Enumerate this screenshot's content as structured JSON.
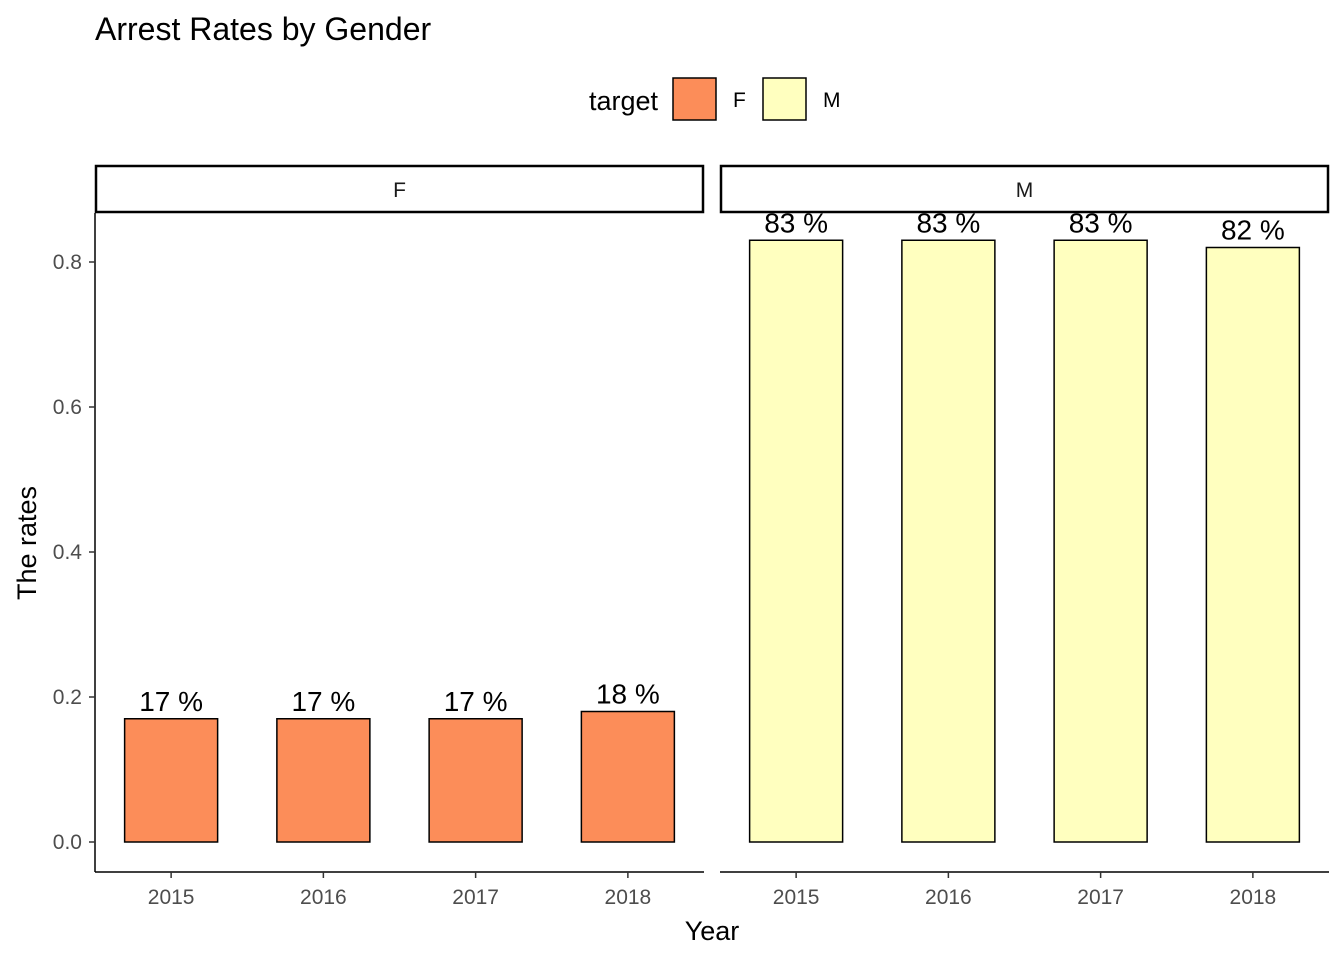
{
  "chart_data": {
    "type": "bar",
    "title": "Arrest Rates by Gender",
    "xlabel": "Year",
    "ylabel": "The rates",
    "ylim": [
      0,
      0.87
    ],
    "y_ticks": [
      "0.0",
      "0.2",
      "0.4",
      "0.6",
      "0.8"
    ],
    "legend": {
      "title": "target",
      "position": "top",
      "items": [
        {
          "name": "F",
          "color": "#FC8D59"
        },
        {
          "name": "M",
          "color": "#FFFFBF"
        }
      ]
    },
    "categories": [
      "2015",
      "2016",
      "2017",
      "2018"
    ],
    "facets": [
      {
        "strip": "F",
        "color": "#FC8D59",
        "values": [
          0.17,
          0.17,
          0.17,
          0.18
        ],
        "labels": [
          "17 %",
          "17 %",
          "17 %",
          "18 %"
        ]
      },
      {
        "strip": "M",
        "color": "#FFFFBF",
        "values": [
          0.83,
          0.83,
          0.83,
          0.82
        ],
        "labels": [
          "83 %",
          "83 %",
          "83 %",
          "82 %"
        ]
      }
    ],
    "grid": false
  }
}
